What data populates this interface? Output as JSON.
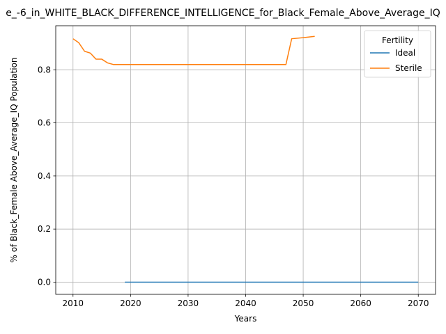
{
  "chart_data": {
    "type": "line",
    "title": "e_-6_in_WHITE_BLACK_DIFFERENCE_INTELLIGENCE_for_Black_Female_Above_Average_IQ",
    "xlabel": "Years",
    "ylabel": "% of Black_Female Above_Average_IQ Population",
    "xlim": [
      2007,
      2073
    ],
    "ylim": [
      -0.046,
      0.966
    ],
    "xticks": [
      2010,
      2020,
      2030,
      2040,
      2050,
      2060,
      2070
    ],
    "yticks": [
      0.0,
      0.2,
      0.4,
      0.6,
      0.8
    ],
    "xtick_labels": [
      "2010",
      "2020",
      "2030",
      "2040",
      "2050",
      "2060",
      "2070"
    ],
    "ytick_labels": [
      "0.0",
      "0.2",
      "0.4",
      "0.6",
      "0.8"
    ],
    "grid": true,
    "legend": {
      "title": "Fertility",
      "position": "top-right"
    },
    "series": [
      {
        "name": "Ideal",
        "color": "#1f77b4",
        "x": [
          2019,
          2070
        ],
        "y": [
          0.0,
          0.0
        ]
      },
      {
        "name": "Sterile",
        "color": "#ff7f0e",
        "x": [
          2010,
          2011,
          2012,
          2013,
          2014,
          2015,
          2016,
          2017,
          2018,
          2020,
          2025,
          2030,
          2035,
          2040,
          2045,
          2047,
          2048,
          2050,
          2052
        ],
        "y": [
          0.917,
          0.902,
          0.87,
          0.863,
          0.84,
          0.84,
          0.826,
          0.82,
          0.82,
          0.82,
          0.82,
          0.82,
          0.82,
          0.82,
          0.82,
          0.82,
          0.917,
          0.921,
          0.926
        ]
      }
    ]
  }
}
